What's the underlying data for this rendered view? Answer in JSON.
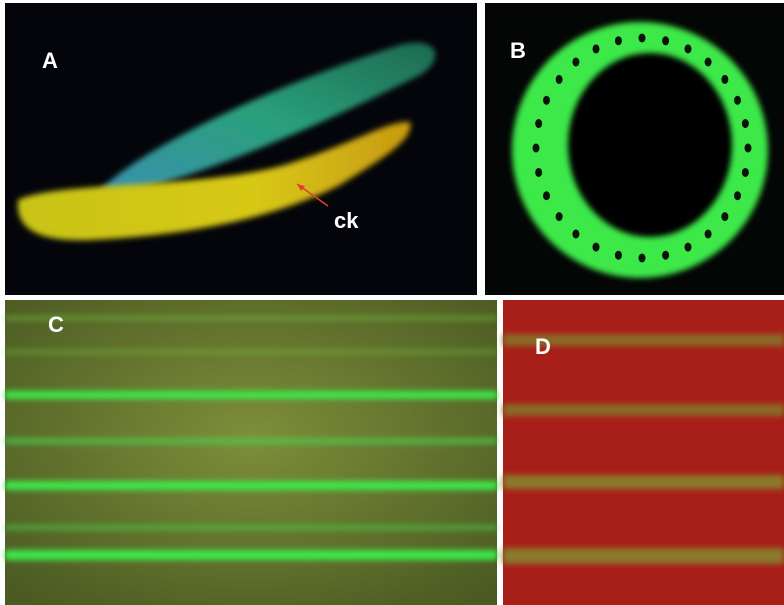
{
  "panels": [
    {
      "label": "A"
    },
    {
      "label": "B"
    },
    {
      "label": "C"
    },
    {
      "label": "D"
    }
  ],
  "annotations": [
    {
      "text": "ck"
    }
  ]
}
